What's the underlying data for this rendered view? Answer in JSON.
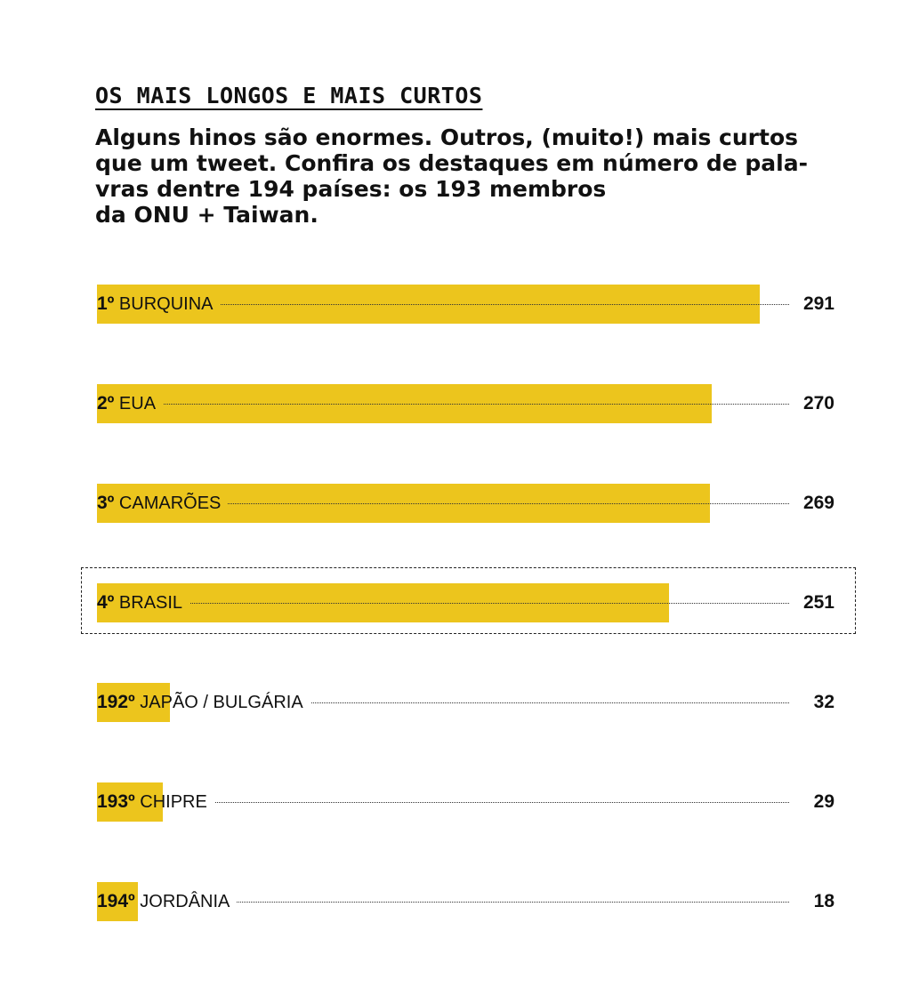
{
  "heading": "OS MAIS LONGOS E MAIS CURTOS",
  "intro": "Alguns hinos são enormes. Outros, (muito!) mais curtos\nque um tweet. Confira os destaques em número de pala-\nvras dentre 194 países: os 193 membros\nda ONU + Taiwan.",
  "colors": {
    "bar": "#ecc51d",
    "text": "#111111",
    "background": "#ffffff"
  },
  "chart_data": {
    "type": "bar",
    "orientation": "horizontal",
    "xlim": [
      0,
      291
    ],
    "highlighted": "4º BRASIL",
    "rows": [
      {
        "rank": "1º",
        "country": "BURQUINA",
        "value": 291
      },
      {
        "rank": "2º",
        "country": "EUA",
        "value": 270
      },
      {
        "rank": "3º",
        "country": "CAMARÕES",
        "value": 269
      },
      {
        "rank": "4º",
        "country": "BRASIL",
        "value": 251
      },
      {
        "rank": "192º",
        "country": "JAPÃO / BULGÁRIA",
        "value": 32
      },
      {
        "rank": "193º",
        "country": "CHIPRE",
        "value": 29
      },
      {
        "rank": "194º",
        "country": "JORDÂNIA",
        "value": 18
      }
    ]
  }
}
